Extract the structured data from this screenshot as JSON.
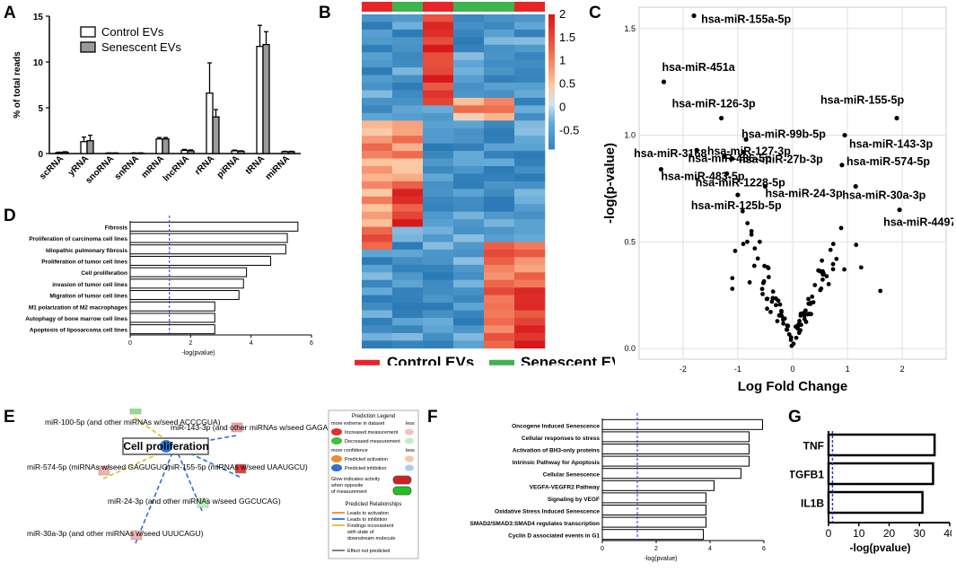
{
  "panels": {
    "A": "A",
    "B": "B",
    "C": "C",
    "D": "D",
    "E": "E",
    "F": "F",
    "G": "G"
  },
  "colors": {
    "red": "#e8242b",
    "green": "#3fb34f",
    "heat_high": "#e41a1c",
    "heat_low": "#1f78b4"
  },
  "chart_data": [
    {
      "id": "A",
      "type": "bar",
      "title": "",
      "ylabel": "% of total reads",
      "xlabel": "",
      "ylim": [
        0,
        15
      ],
      "yticks": [
        "0",
        "5",
        "10",
        "15"
      ],
      "categories": [
        "scRNA",
        "yRNA",
        "snoRNA",
        "snRNA",
        "mRNA",
        "lncRNA",
        "rRNA",
        "piRNA",
        "tRNA",
        "miRNA"
      ],
      "legend": [
        "Control EVs",
        "Senescent EVs"
      ],
      "series": [
        {
          "name": "Control EVs",
          "values": [
            0.1,
            1.3,
            0.05,
            0.05,
            1.6,
            0.35,
            6.6,
            0.3,
            11.7,
            0.2
          ],
          "errors": [
            0.05,
            0.5,
            0.02,
            0.02,
            0.15,
            0.1,
            3.3,
            0.08,
            2.3,
            0.05
          ]
        },
        {
          "name": "Senescent EVs",
          "values": [
            0.15,
            1.4,
            0.05,
            0.05,
            1.6,
            0.3,
            4.0,
            0.25,
            11.9,
            0.2
          ],
          "errors": [
            0.05,
            0.6,
            0.02,
            0.02,
            0.15,
            0.1,
            0.8,
            0.05,
            1.4,
            0.05
          ]
        }
      ]
    },
    {
      "id": "B",
      "type": "heatmap",
      "legend": [
        "Control EVs",
        "Senescent EVs"
      ],
      "scale_ticks": [
        "2",
        "1.5",
        "1",
        "0.5",
        "0",
        "-0.5"
      ],
      "column_groups": [
        "red",
        "green",
        "red",
        "green",
        "green",
        "red"
      ]
    },
    {
      "id": "C",
      "type": "scatter",
      "xlabel": "Log Fold Change",
      "ylabel": "-log(p-value)",
      "xlim": [
        -2.8,
        2.8
      ],
      "ylim": [
        -0.05,
        1.6
      ],
      "xticks": [
        "-2",
        "-1",
        "0",
        "1",
        "2"
      ],
      "yticks": [
        "0.0",
        "0.5",
        "1.0",
        "1.5"
      ],
      "labeled_points": [
        {
          "label": "hsa-miR-155a-5p",
          "x": -1.8,
          "y": 1.56
        },
        {
          "label": "hsa-miR-451a",
          "x": -2.35,
          "y": 1.25
        },
        {
          "label": "hsa-miR-126-3p",
          "x": -1.3,
          "y": 1.08
        },
        {
          "label": "hsa-miR-155-5p",
          "x": 1.9,
          "y": 1.08
        },
        {
          "label": "hsa-miR-99b-5p",
          "x": -0.85,
          "y": 0.98
        },
        {
          "label": "hsa-miR-3168",
          "x": -1.75,
          "y": 0.93
        },
        {
          "label": "hsa-miR-143-3p",
          "x": 0.95,
          "y": 1.0
        },
        {
          "label": "hsa-miR-27b-3p",
          "x": -0.9,
          "y": 0.92
        },
        {
          "label": "hsa-miR-486-5p",
          "x": -1.25,
          "y": 0.9
        },
        {
          "label": "hsa-miR-127-3p",
          "x": -1.1,
          "y": 0.89
        },
        {
          "label": "hsa-miR-574-5p",
          "x": 0.9,
          "y": 0.86
        },
        {
          "label": "hsa-miR-1228-5p",
          "x": -1.2,
          "y": 0.82
        },
        {
          "label": "hsa-miR-483-5p",
          "x": -2.4,
          "y": 0.84
        },
        {
          "label": "hsa-miR-24-3p",
          "x": -0.5,
          "y": 0.76
        },
        {
          "label": "hsa-miR-30a-3p",
          "x": 1.15,
          "y": 0.76
        },
        {
          "label": "hsa-miR-125b-5p",
          "x": -1.0,
          "y": 0.72
        },
        {
          "label": "hsa-miR-4497",
          "x": 1.95,
          "y": 0.65
        }
      ]
    },
    {
      "id": "D",
      "type": "bar",
      "orientation": "horizontal",
      "xlabel": "-log(pvalue)",
      "xlim": [
        0,
        6
      ],
      "xticks": [
        "0",
        "2",
        "4",
        "6"
      ],
      "threshold": 1.3,
      "categories": [
        "Fibrosis",
        "Proliferation of carcinoma cell lines",
        "Idiopathic pulmonary fibrosis",
        "Proliferation of tumor cell lines",
        "Cell proliferation",
        "invasion of tumor cell lines",
        "Migration of tumor cell lines",
        "M1 polarization of M2 macrophages",
        "Autophagy of bone marrow cell lines",
        "Apoptosis of liposarcoma cell lines"
      ],
      "values": [
        5.55,
        5.2,
        5.15,
        4.65,
        3.85,
        3.75,
        3.6,
        2.8,
        2.8,
        2.8
      ]
    },
    {
      "id": "F",
      "type": "bar",
      "orientation": "horizontal",
      "xlabel": "-log(pvalue)",
      "xlim": [
        0,
        6
      ],
      "xticks": [
        "0",
        "2",
        "4",
        "6"
      ],
      "threshold": 1.3,
      "categories": [
        "Oncogene Induced Senescence",
        "Cellular responses to stress",
        "Activation of BH3-only proteins",
        "Intrinsic Pathway for Apoptosis",
        "Cellular Senescence",
        "VEGFA-VEGFR2 Pathway",
        "Signaling by VEGF",
        "Oxidative Stress Induced Senescence",
        "SMAD2/SMAD3:SMAD4 regulates transcription",
        "Cyclin D associated events in G1"
      ],
      "values": [
        5.95,
        5.45,
        5.45,
        5.45,
        5.15,
        4.15,
        3.85,
        3.85,
        3.85,
        3.75
      ]
    },
    {
      "id": "G",
      "type": "bar",
      "orientation": "horizontal",
      "xlabel": "-log(pvalue)",
      "xlim": [
        0,
        40
      ],
      "xticks": [
        "0",
        "10",
        "20",
        "30",
        "40"
      ],
      "threshold": 1.3,
      "categories": [
        "TNF",
        "TGFB1",
        "IL1B"
      ],
      "values": [
        35,
        34.5,
        31
      ]
    }
  ],
  "network": {
    "center": "Cell proliferation",
    "nodes": [
      "miR-100-5p (and other miRNAs w/seed ACCCGUA)",
      "miR-143-3p (and other miRNAs w/seed GAGAUGA)",
      "miR-574-5p (miRNAs w/seed GAGUGUG)",
      "miR-155-5p (miRNAs w/seed UAAUGCU)",
      "miR-24-3p (and other miRNAs w/seed GGCUCAG)",
      "miR-30a-3p (and other miRNAs w/seed UUUCAGU)"
    ]
  },
  "prediction_legend": {
    "title": "Prediction Legend",
    "extreme_more": "more extreme in dataset",
    "less": "less",
    "increased": "Increased measurement",
    "decreased": "Decreased measurement",
    "confidence_more": "more confidence",
    "pred_activation": "Predicted activation",
    "pred_inhibition": "Predicted inhibition",
    "glow": "Glow indicates activity when opposite of measurement",
    "relationships_title": "Predicted Relationships",
    "rel_activation": "Leads to activation",
    "rel_inhibition": "Leads to inhibition",
    "rel_inconsistent": "Findings inconsistent with state of downstream molecule",
    "rel_not_predicted": "Effect not predicted"
  }
}
